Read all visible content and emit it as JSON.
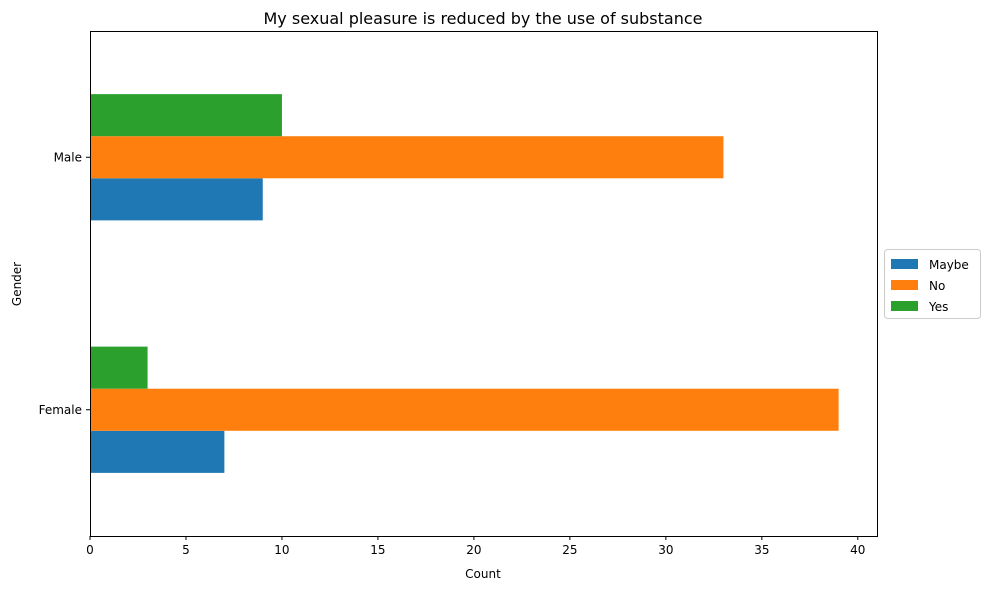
{
  "chart_data": {
    "type": "bar",
    "orientation": "horizontal",
    "title": "My sexual pleasure is reduced by the use of substance",
    "xlabel": "Count",
    "ylabel": "Gender",
    "categories": [
      "Female",
      "Male"
    ],
    "series": [
      {
        "name": "Maybe",
        "values": [
          7,
          9
        ],
        "color": "#1f77b4"
      },
      {
        "name": "No",
        "values": [
          39,
          33
        ],
        "color": "#ff7f0e"
      },
      {
        "name": "Yes",
        "values": [
          3,
          10
        ],
        "color": "#2ca02c"
      }
    ],
    "xlim": [
      0,
      41
    ],
    "xticks": [
      0,
      5,
      10,
      15,
      20,
      25,
      30,
      35,
      40
    ],
    "grid": false,
    "legend_position": "center right, outside plot"
  }
}
